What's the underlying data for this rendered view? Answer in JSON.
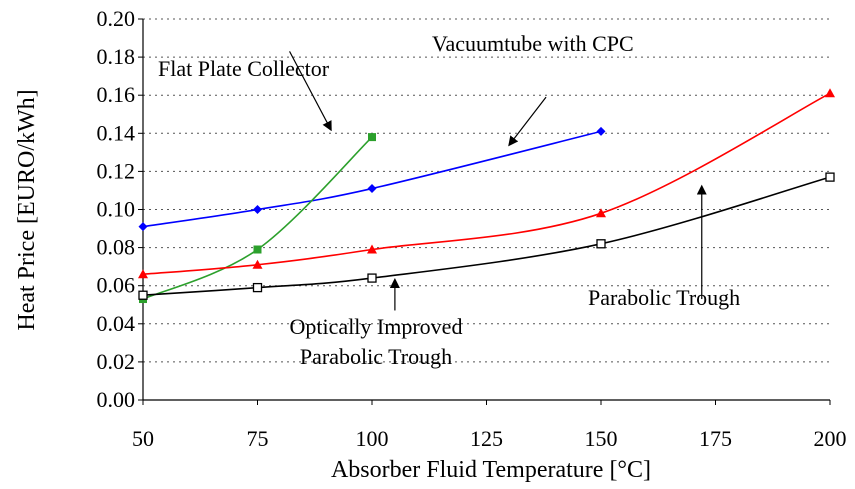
{
  "chart_data": {
    "type": "line",
    "xlabel": "Absorber Fluid Temperature [°C]",
    "ylabel": "Heat Price [EURO/kWh]",
    "xlim": [
      50,
      200
    ],
    "ylim": [
      0.0,
      0.2
    ],
    "x_ticks": [
      50,
      75,
      100,
      125,
      150,
      175,
      200
    ],
    "x_tick_labels": [
      "50",
      "75",
      "100",
      "125",
      "150",
      "175",
      "200"
    ],
    "y_ticks": [
      0.0,
      0.02,
      0.04,
      0.06,
      0.08,
      0.1,
      0.12,
      0.14,
      0.16,
      0.18,
      0.2
    ],
    "y_tick_labels": [
      "0.00",
      "0.02",
      "0.04",
      "0.06",
      "0.08",
      "0.10",
      "0.12",
      "0.14",
      "0.16",
      "0.18",
      "0.20"
    ],
    "grid": "horizontal dotted",
    "series": [
      {
        "color": "#0000ff",
        "marker": "diamond",
        "x": [
          50,
          75,
          100,
          150
        ],
        "y": [
          0.091,
          0.1,
          0.111,
          0.141
        ]
      },
      {
        "color": "#2ca02c",
        "marker": "square",
        "x": [
          50,
          75,
          100
        ],
        "y": [
          0.053,
          0.079,
          0.138
        ]
      },
      {
        "color": "#ff0000",
        "marker": "triangle",
        "x": [
          50,
          75,
          100,
          150,
          200
        ],
        "y": [
          0.066,
          0.071,
          0.079,
          0.098,
          0.161
        ]
      },
      {
        "color": "#000000",
        "marker": "open-square",
        "x": [
          50,
          75,
          100,
          150,
          200
        ],
        "y": [
          0.055,
          0.059,
          0.064,
          0.082,
          0.117
        ]
      }
    ],
    "annotations": [
      {
        "id": "flat",
        "lines": [
          "Flat Plate Collector"
        ],
        "arrow_from": [
          82,
          0.183
        ],
        "arrow_to": [
          91,
          0.142
        ]
      },
      {
        "id": "vacuum",
        "lines": [
          "Vacuumtube with CPC"
        ],
        "arrow_from": [
          138,
          0.159
        ],
        "arrow_to": [
          130,
          0.134
        ]
      },
      {
        "id": "parabolic",
        "lines": [
          "Parabolic Trough"
        ],
        "arrow_from": [
          172,
          0.053
        ],
        "arrow_to": [
          172,
          0.112
        ]
      },
      {
        "id": "optical",
        "lines": [
          "Optically Improved",
          "Parabolic Trough"
        ],
        "arrow_from": [
          105,
          0.047
        ],
        "arrow_to": [
          105,
          0.063
        ]
      }
    ]
  }
}
